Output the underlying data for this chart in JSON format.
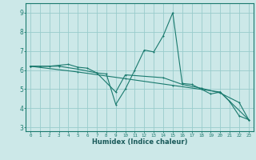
{
  "xlabel": "Humidex (Indice chaleur)",
  "ylabel": "",
  "bg_color": "#cce8e8",
  "grid_color": "#99cccc",
  "line_color": "#1a7a6e",
  "xlim": [
    -0.5,
    23.5
  ],
  "ylim": [
    2.8,
    9.5
  ],
  "yticks": [
    3,
    4,
    5,
    6,
    7,
    8,
    9
  ],
  "xticks": [
    0,
    1,
    2,
    3,
    4,
    5,
    6,
    7,
    8,
    9,
    10,
    11,
    12,
    13,
    14,
    15,
    16,
    17,
    18,
    19,
    20,
    21,
    22,
    23
  ],
  "series1": [
    [
      0,
      6.2
    ],
    [
      1,
      6.2
    ],
    [
      2,
      6.2
    ],
    [
      3,
      6.25
    ],
    [
      4,
      6.3
    ],
    [
      5,
      6.15
    ],
    [
      6,
      6.1
    ],
    [
      7,
      5.85
    ],
    [
      8,
      5.8
    ],
    [
      9,
      4.2
    ],
    [
      10,
      5.0
    ],
    [
      11,
      6.0
    ],
    [
      12,
      7.05
    ],
    [
      13,
      6.95
    ],
    [
      14,
      7.8
    ],
    [
      15,
      9.0
    ],
    [
      16,
      5.3
    ],
    [
      17,
      5.25
    ],
    [
      18,
      5.0
    ],
    [
      19,
      4.75
    ],
    [
      20,
      4.85
    ],
    [
      21,
      4.35
    ],
    [
      22,
      3.6
    ],
    [
      23,
      3.4
    ]
  ],
  "series2": [
    [
      0,
      6.2
    ],
    [
      3,
      6.2
    ],
    [
      5,
      6.05
    ],
    [
      7,
      5.85
    ],
    [
      9,
      4.85
    ],
    [
      10,
      5.75
    ],
    [
      14,
      5.6
    ],
    [
      16,
      5.25
    ],
    [
      18,
      5.05
    ],
    [
      20,
      4.8
    ],
    [
      22,
      4.3
    ],
    [
      23,
      3.4
    ]
  ],
  "series3": [
    [
      0,
      6.2
    ],
    [
      5,
      5.9
    ],
    [
      10,
      5.55
    ],
    [
      15,
      5.2
    ],
    [
      20,
      4.85
    ],
    [
      23,
      3.4
    ]
  ]
}
